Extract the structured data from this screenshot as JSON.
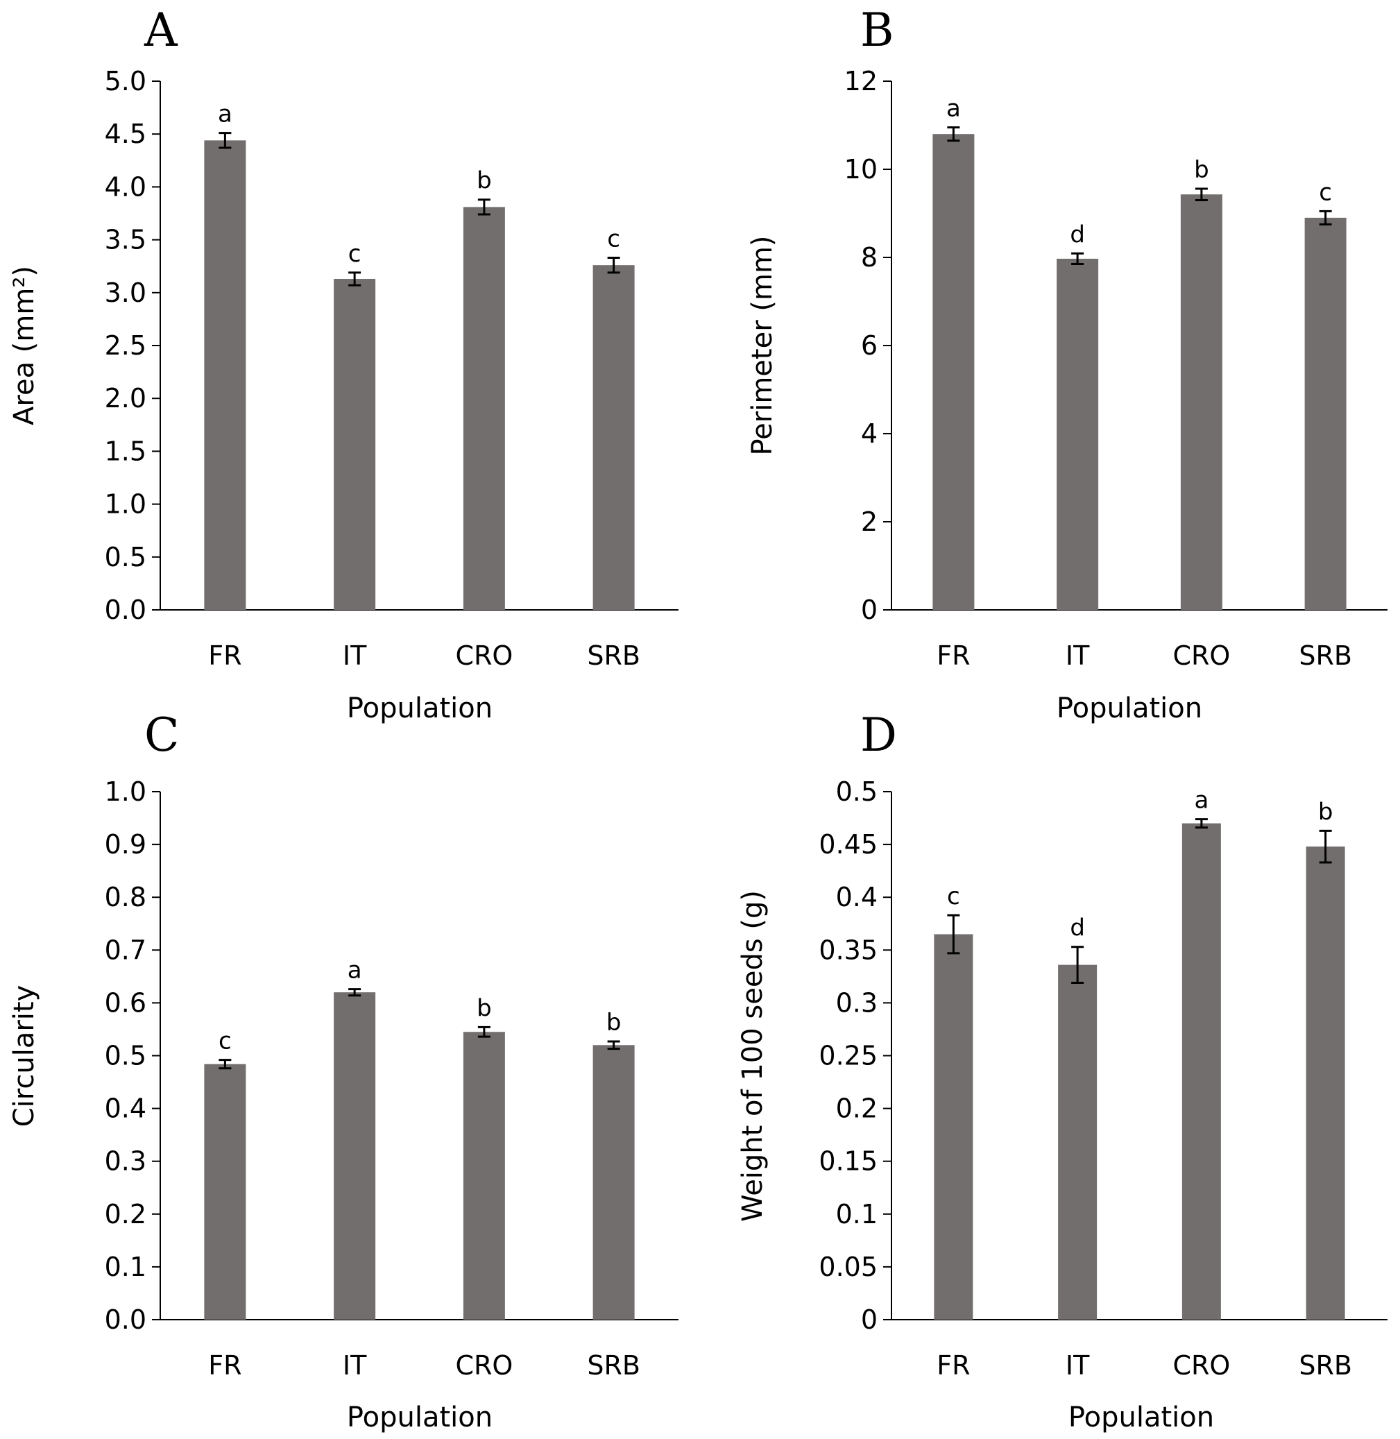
{
  "figure": {
    "bar_color": "#736e6e",
    "axis_color": "#000000"
  },
  "chart_data": [
    {
      "panel": "A",
      "type": "bar",
      "title": "",
      "xlabel": "Population",
      "ylabel": "Area (mm²)",
      "categories": [
        "FR",
        "IT",
        "CRO",
        "SRB"
      ],
      "values": [
        4.44,
        3.13,
        3.81,
        3.26
      ],
      "errors": [
        0.07,
        0.06,
        0.07,
        0.07
      ],
      "significance": [
        "a",
        "c",
        "b",
        "c"
      ],
      "ylim": [
        0,
        5
      ],
      "yticks": [
        "0.0",
        "0.5",
        "1.0",
        "1.5",
        "2.0",
        "2.5",
        "3.0",
        "3.5",
        "4.0",
        "4.5",
        "5.0"
      ]
    },
    {
      "panel": "B",
      "type": "bar",
      "title": "",
      "xlabel": "Population",
      "ylabel": "Perimeter (mm)",
      "categories": [
        "FR",
        "IT",
        "CRO",
        "SRB"
      ],
      "values": [
        10.8,
        7.97,
        9.43,
        8.9
      ],
      "errors": [
        0.15,
        0.12,
        0.13,
        0.15
      ],
      "significance": [
        "a",
        "d",
        "b",
        "c"
      ],
      "ylim": [
        0,
        12
      ],
      "yticks": [
        "0",
        "2",
        "4",
        "6",
        "8",
        "10",
        "12"
      ]
    },
    {
      "panel": "C",
      "type": "bar",
      "title": "",
      "xlabel": "Population",
      "ylabel": "Circularity",
      "categories": [
        "FR",
        "IT",
        "CRO",
        "SRB"
      ],
      "values": [
        0.484,
        0.62,
        0.545,
        0.52
      ],
      "errors": [
        0.008,
        0.006,
        0.009,
        0.007
      ],
      "significance": [
        "c",
        "a",
        "b",
        "b"
      ],
      "ylim": [
        0,
        1
      ],
      "yticks": [
        "0.0",
        "0.1",
        "0.2",
        "0.3",
        "0.4",
        "0.5",
        "0.6",
        "0.7",
        "0.8",
        "0.9",
        "1.0"
      ]
    },
    {
      "panel": "D",
      "type": "bar",
      "title": "",
      "xlabel": "Population",
      "ylabel": "Weight of 100 seeds (g)",
      "categories": [
        "FR",
        "IT",
        "CRO",
        "SRB"
      ],
      "values": [
        0.365,
        0.336,
        0.47,
        0.448
      ],
      "errors": [
        0.018,
        0.017,
        0.004,
        0.015
      ],
      "significance": [
        "c",
        "d",
        "a",
        "b"
      ],
      "ylim": [
        0,
        0.5
      ],
      "yticks": [
        "0",
        "0.05",
        "0.1",
        "0.15",
        "0.2",
        "0.25",
        "0.3",
        "0.35",
        "0.4",
        "0.45",
        "0.5"
      ]
    }
  ]
}
